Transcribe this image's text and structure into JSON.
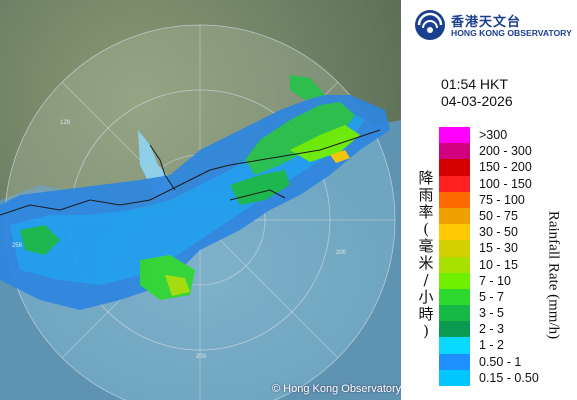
{
  "organization": {
    "name_zh": "香港天文台",
    "name_en": "HONG KONG OBSERVATORY"
  },
  "timestamp": {
    "time": "01:54 HKT",
    "date": "04-03-2026"
  },
  "legend": {
    "title_zh": "降雨率(毫米/小時)",
    "title_en": "Rainfall Rate (mm/h)",
    "items": [
      {
        "range": ">300",
        "color": "#ff00ff"
      },
      {
        "range": "200 - 300",
        "color": "#d0007f"
      },
      {
        "range": "150 - 200",
        "color": "#d40000"
      },
      {
        "range": "100 - 150",
        "color": "#ff2020"
      },
      {
        "range": "75 - 100",
        "color": "#ff6a00"
      },
      {
        "range": "50 - 75",
        "color": "#f0a000"
      },
      {
        "range": "30 - 50",
        "color": "#ffc800"
      },
      {
        "range": "15 - 30",
        "color": "#d4d000"
      },
      {
        "range": "10 - 15",
        "color": "#a8e000"
      },
      {
        "range": "7 - 10",
        "color": "#6ef000"
      },
      {
        "range": "5 - 7",
        "color": "#2ed82e"
      },
      {
        "range": "3 - 5",
        "color": "#17b845"
      },
      {
        "range": "2 - 3",
        "color": "#0a9a50"
      },
      {
        "range": "1 - 2",
        "color": "#0ad8ff"
      },
      {
        "range": "0.50 - 1",
        "color": "#1e90ff"
      },
      {
        "range": "0.15 - 0.50",
        "color": "#00c8ff"
      }
    ]
  },
  "map": {
    "range_ring_labels": [
      "128",
      "256",
      "200",
      "200"
    ],
    "copyright": "© Hong Kong Observatory"
  }
}
